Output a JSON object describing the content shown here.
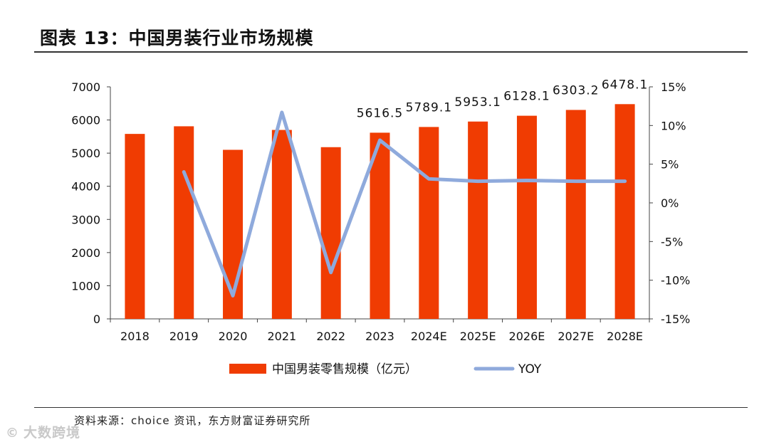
{
  "header": {
    "title": "图表 13：中国男装行业市场规模"
  },
  "footer": {
    "source": "资料来源：choice 资讯，东方财富证券研究所"
  },
  "watermark": {
    "icon": "copyright-circle-icon",
    "text": "大数跨境"
  },
  "colors": {
    "bar": "#f03c02",
    "line": "#8faadc",
    "axis": "#444444"
  },
  "chart_data": {
    "type": "bar",
    "categories": [
      "2018",
      "2019",
      "2020",
      "2021",
      "2022",
      "2023",
      "2024E",
      "2025E",
      "2026E",
      "2027E",
      "2028E"
    ],
    "series": [
      {
        "name": "中国男装零售规模（亿元）",
        "type": "bar",
        "axis": "left",
        "values": [
          5580,
          5810,
          5100,
          5700,
          5180,
          5616.5,
          5789.1,
          5953.1,
          6128.1,
          6303.2,
          6478.1
        ]
      },
      {
        "name": "YOY",
        "type": "line",
        "axis": "right",
        "values": [
          null,
          4.0,
          -12.0,
          11.7,
          -9.0,
          8.1,
          3.1,
          2.8,
          2.9,
          2.8,
          2.8
        ]
      }
    ],
    "data_labels": [
      "",
      "",
      "",
      "",
      "",
      "5616.5",
      "5789.1",
      "5953.1",
      "6128.1",
      "6303.2",
      "6478.1"
    ],
    "y_left": {
      "min": 0,
      "max": 7000,
      "ticks": [
        "0",
        "1000",
        "2000",
        "3000",
        "4000",
        "5000",
        "6000",
        "7000"
      ]
    },
    "y_right": {
      "min": -15,
      "max": 15,
      "ticks": [
        "-15%",
        "-10%",
        "-5%",
        "0%",
        "5%",
        "10%",
        "15%"
      ]
    },
    "legend": {
      "position": "bottom",
      "entries": [
        "中国男装零售规模（亿元）",
        "YOY"
      ]
    },
    "grid": false
  }
}
